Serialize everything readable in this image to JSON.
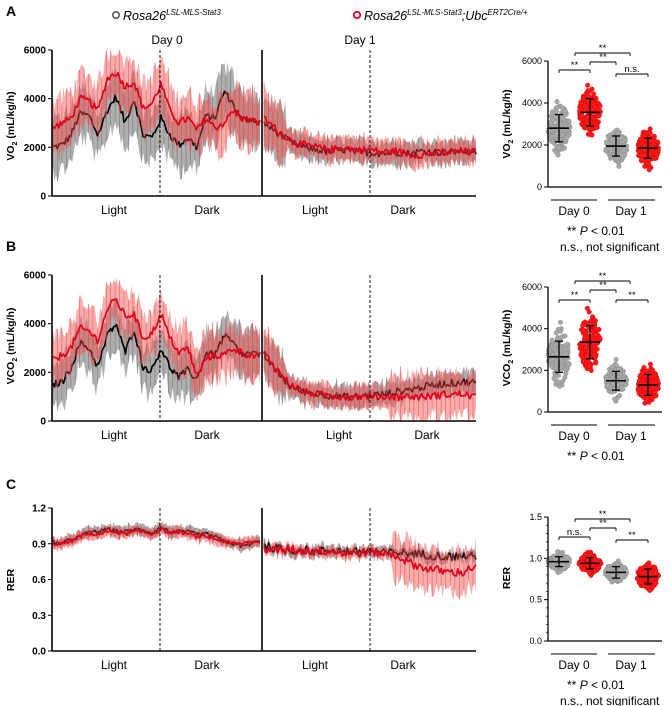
{
  "legend": {
    "ctrl": {
      "name": "Rosa26",
      "sup": "LSL-MLS-Stat3",
      "mid": "",
      "sup2": "",
      "color": "#5a5a5a"
    },
    "ko": {
      "name": "Rosa26",
      "sup": "LSL-MLS-Stat3",
      "mid": ";Ubc",
      "sup2": "ERT2Cre/+",
      "color": "#e3001b"
    }
  },
  "chart_data": [
    {
      "type": "line",
      "panel": "A",
      "ylabel_main": "VO",
      "ylabel_sub": "2",
      "ylabel_unit": " (mL/kg/h)",
      "yticks": [
        "0",
        "2000",
        "4000",
        "6000"
      ],
      "ylim": [
        0,
        6000
      ],
      "day_labels": [
        "Day 0",
        "Day 1"
      ],
      "phase_labels": [
        "Light",
        "Dark",
        "Light",
        "Dark"
      ],
      "series": [
        {
          "name": "ctrl",
          "color": "#000000",
          "day0": [
            2000,
            2100,
            2500,
            3400,
            3300,
            2500,
            3500,
            4100,
            3000,
            4000,
            2500,
            2400,
            3200,
            2500,
            2100,
            2400,
            2000,
            3300,
            3200,
            4300,
            3800,
            3100,
            3200,
            3000
          ],
          "day1": [
            3000,
            2600,
            2200,
            2000,
            1900,
            1800,
            1900,
            1800,
            1800,
            1750,
            1800,
            1750,
            1850,
            1800,
            1800,
            1850,
            1800
          ]
        },
        {
          "name": "ko",
          "color": "#e3001b",
          "day0": [
            2800,
            3000,
            3200,
            4000,
            3900,
            3500,
            4800,
            5100,
            4500,
            4700,
            3600,
            3800,
            4600,
            3500,
            3000,
            3200,
            2700,
            3200,
            2800,
            3000,
            3500,
            3200,
            3100,
            3000
          ],
          "day1": [
            3200,
            2700,
            2300,
            2100,
            2000,
            1900,
            2000,
            1900,
            1900,
            1800,
            1850,
            1700,
            1700,
            1750,
            1800,
            1850,
            1750
          ]
        }
      ]
    },
    {
      "type": "scatter",
      "panel": "A-summary",
      "ylabel_main": "VO",
      "ylabel_sub": "2",
      "ylabel_unit": " (mL/kg/h)",
      "yticks": [
        "0",
        "2000",
        "4000",
        "6000"
      ],
      "ylim": [
        0,
        6000
      ],
      "categories": [
        "Day 0",
        "Day 1"
      ],
      "groups": [
        {
          "day": 0,
          "series": "ctrl",
          "mean": 2800,
          "sd": 650
        },
        {
          "day": 0,
          "series": "ko",
          "mean": 3550,
          "sd": 650
        },
        {
          "day": 1,
          "series": "ctrl",
          "mean": 1950,
          "sd": 480
        },
        {
          "day": 1,
          "series": "ko",
          "mean": 1850,
          "sd": 480
        }
      ],
      "significance": [
        "**",
        "**",
        "**",
        "n.s."
      ],
      "notes": [
        "** P < 0.01",
        "n.s., not significant"
      ]
    },
    {
      "type": "line",
      "panel": "B",
      "ylabel_main": "VCO",
      "ylabel_sub": "2",
      "ylabel_unit": " (mL/kg/h)",
      "yticks": [
        "0",
        "2000",
        "4000",
        "6000"
      ],
      "ylim": [
        0,
        6000
      ],
      "phase_labels": [
        "Light",
        "Dark",
        "Light",
        "Dark"
      ],
      "series": [
        {
          "name": "ctrl",
          "color": "#000000",
          "day0": [
            1500,
            1600,
            2200,
            3200,
            3000,
            2200,
            3500,
            4000,
            2800,
            3800,
            2200,
            2100,
            3000,
            2200,
            1800,
            2100,
            1700,
            2800,
            2700,
            3500,
            3200,
            2700,
            2800,
            2700
          ],
          "day1": [
            2700,
            2000,
            1400,
            1200,
            1100,
            1050,
            1000,
            1000,
            1050,
            1100,
            1200,
            1300,
            1400,
            1500,
            1550,
            1600,
            1600
          ]
        },
        {
          "name": "ko",
          "color": "#e3001b",
          "day0": [
            2500,
            2700,
            3000,
            3800,
            3700,
            3300,
            4600,
            5000,
            4300,
            4400,
            3400,
            3600,
            4400,
            3400,
            2800,
            3000,
            1800,
            2600,
            2700,
            2700,
            3000,
            2800,
            2700,
            2600
          ],
          "day1": [
            2800,
            2100,
            1500,
            1200,
            1100,
            1050,
            1000,
            1000,
            1000,
            1000,
            1000,
            1000,
            1000,
            1050,
            1100,
            1100,
            1000
          ]
        }
      ]
    },
    {
      "type": "scatter",
      "panel": "B-summary",
      "ylabel_main": "VCO",
      "ylabel_sub": "2",
      "ylabel_unit": " (mL/kg/h)",
      "yticks": [
        "0",
        "2000",
        "4000",
        "6000"
      ],
      "ylim": [
        0,
        6000
      ],
      "categories": [
        "Day 0",
        "Day 1"
      ],
      "groups": [
        {
          "day": 0,
          "series": "ctrl",
          "mean": 2650,
          "sd": 750
        },
        {
          "day": 0,
          "series": "ko",
          "mean": 3350,
          "sd": 800
        },
        {
          "day": 1,
          "series": "ctrl",
          "mean": 1500,
          "sd": 450
        },
        {
          "day": 1,
          "series": "ko",
          "mean": 1300,
          "sd": 500
        }
      ],
      "significance": [
        "**",
        "**",
        "**",
        "**"
      ],
      "notes": [
        "** P < 0.01"
      ]
    },
    {
      "type": "line",
      "panel": "C",
      "ylabel_main": "RER",
      "ylabel_sub": "",
      "ylabel_unit": "",
      "yticks": [
        "0.0",
        "0.3",
        "0.6",
        "0.9",
        "1.2"
      ],
      "ylim": [
        0,
        1.2
      ],
      "phase_labels": [
        "Light",
        "Dark",
        "Light",
        "Dark"
      ],
      "series": [
        {
          "name": "ctrl",
          "color": "#000000",
          "day0": [
            0.92,
            0.9,
            0.94,
            0.96,
            1.0,
            1.0,
            1.02,
            1.01,
            1.0,
            1.02,
            1.02,
            0.99,
            1.04,
            1.0,
            1.0,
            1.0,
            0.98,
            0.98,
            0.96,
            0.92,
            0.9,
            0.88,
            0.9,
            0.92
          ],
          "day1": [
            0.88,
            0.86,
            0.84,
            0.85,
            0.83,
            0.85,
            0.84,
            0.83,
            0.84,
            0.82,
            0.83,
            0.82,
            0.81,
            0.8,
            0.79,
            0.8,
            0.79
          ]
        },
        {
          "name": "ko",
          "color": "#e3001b",
          "day0": [
            0.9,
            0.9,
            0.92,
            0.96,
            0.98,
            0.98,
            1.0,
            1.0,
            0.98,
            1.0,
            1.0,
            0.98,
            1.02,
            0.99,
            1.0,
            0.98,
            0.96,
            0.96,
            0.94,
            0.92,
            0.9,
            0.9,
            0.92,
            0.92
          ],
          "day1": [
            0.86,
            0.84,
            0.86,
            0.84,
            0.84,
            0.84,
            0.82,
            0.82,
            0.83,
            0.82,
            0.8,
            0.74,
            0.7,
            0.68,
            0.66,
            0.66,
            0.72
          ]
        }
      ]
    },
    {
      "type": "scatter",
      "panel": "C-summary",
      "ylabel_main": "RER",
      "ylabel_sub": "",
      "ylabel_unit": "",
      "yticks": [
        "0.0",
        "0.5",
        "1.0",
        "1.5"
      ],
      "ylim": [
        0,
        1.5
      ],
      "categories": [
        "Day 0",
        "Day 1"
      ],
      "groups": [
        {
          "day": 0,
          "series": "ctrl",
          "mean": 0.96,
          "sd": 0.06
        },
        {
          "day": 0,
          "series": "ko",
          "mean": 0.94,
          "sd": 0.07
        },
        {
          "day": 1,
          "series": "ctrl",
          "mean": 0.83,
          "sd": 0.07
        },
        {
          "day": 1,
          "series": "ko",
          "mean": 0.78,
          "sd": 0.09
        }
      ],
      "significance": [
        "**",
        "**",
        "n.s.",
        "**"
      ],
      "notes": [
        "** P < 0.01",
        "n.s., not significant"
      ]
    }
  ],
  "panel_letters": [
    "A",
    "B",
    "C"
  ]
}
